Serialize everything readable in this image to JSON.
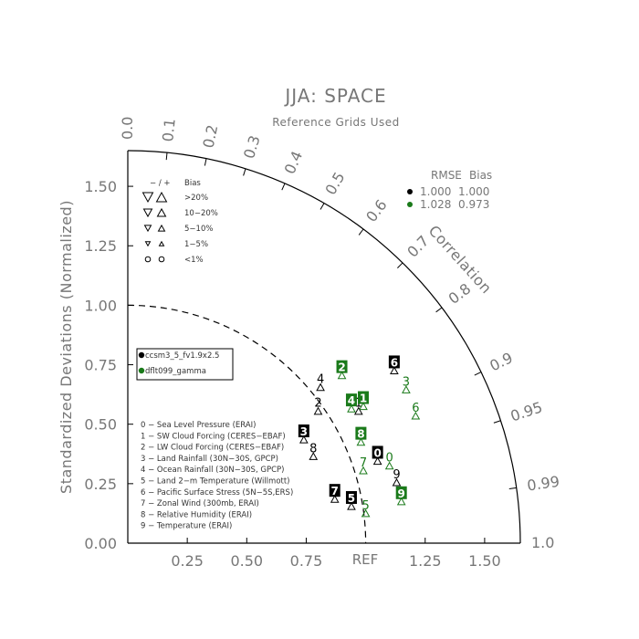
{
  "chart_data": {
    "type": "scatter",
    "subtype": "taylor-diagram",
    "title": "JJA: SPACE",
    "subtitle": "Reference Grids Used",
    "ylabel": "Standardized Deviations (Normalized)",
    "correlation_label": "Correlation",
    "ref_label": "REF",
    "std_range": [
      0,
      1.65
    ],
    "std_ticks_y": [
      "0.00",
      "0.25",
      "0.50",
      "0.75",
      "1.00",
      "1.25",
      "1.50"
    ],
    "std_ticks_x": [
      "0.25",
      "0.50",
      "0.75",
      "1.25",
      "1.50"
    ],
    "std_tick_values_x": [
      0.25,
      0.5,
      0.75,
      1.25,
      1.5
    ],
    "std_tick_values_y": [
      0,
      0.25,
      0.5,
      0.75,
      1.0,
      1.25,
      1.5
    ],
    "correlation_ticks": [
      "0.0",
      "0.1",
      "0.2",
      "0.3",
      "0.4",
      "0.5",
      "0.6",
      "0.7",
      "0.8",
      "0.9",
      "0.95",
      "0.99",
      "1.0"
    ],
    "correlation_tick_values": [
      0.0,
      0.1,
      0.2,
      0.3,
      0.4,
      0.5,
      0.6,
      0.7,
      0.8,
      0.9,
      0.95,
      0.99,
      1.0
    ],
    "reference_arc_radius": 1.0,
    "series": [
      {
        "name": "ccsm3_5_fv1.9x2.5",
        "color": "#000000",
        "points": [
          {
            "id": "0",
            "x": 1.05,
            "y": 0.38
          },
          {
            "id": "1",
            "x": 0.97,
            "y": 0.59
          },
          {
            "id": "2",
            "x": 0.8,
            "y": 0.59
          },
          {
            "id": "3",
            "x": 0.74,
            "y": 0.47
          },
          {
            "id": "4",
            "x": 0.81,
            "y": 0.69
          },
          {
            "id": "5",
            "x": 0.94,
            "y": 0.19
          },
          {
            "id": "6",
            "x": 1.12,
            "y": 0.76
          },
          {
            "id": "7",
            "x": 0.87,
            "y": 0.22
          },
          {
            "id": "8",
            "x": 0.78,
            "y": 0.4
          },
          {
            "id": "9",
            "x": 1.13,
            "y": 0.29
          }
        ]
      },
      {
        "name": "dflt099_gamma",
        "color": "#1a7a1a",
        "points": [
          {
            "id": "0",
            "x": 1.1,
            "y": 0.36
          },
          {
            "id": "1",
            "x": 0.99,
            "y": 0.61
          },
          {
            "id": "2",
            "x": 0.9,
            "y": 0.74
          },
          {
            "id": "3",
            "x": 1.17,
            "y": 0.68
          },
          {
            "id": "4",
            "x": 0.94,
            "y": 0.6
          },
          {
            "id": "5",
            "x": 1.0,
            "y": 0.16
          },
          {
            "id": "6",
            "x": 1.21,
            "y": 0.57
          },
          {
            "id": "7",
            "x": 0.99,
            "y": 0.34
          },
          {
            "id": "8",
            "x": 0.98,
            "y": 0.46
          },
          {
            "id": "9",
            "x": 1.15,
            "y": 0.21
          }
        ]
      }
    ],
    "highlighted_points": [
      {
        "series": 0,
        "id": "0"
      },
      {
        "series": 0,
        "id": "3"
      },
      {
        "series": 0,
        "id": "5"
      },
      {
        "series": 0,
        "id": "6"
      },
      {
        "series": 0,
        "id": "7"
      },
      {
        "series": 1,
        "id": "1"
      },
      {
        "series": 1,
        "id": "2"
      },
      {
        "series": 1,
        "id": "4"
      },
      {
        "series": 1,
        "id": "8"
      },
      {
        "series": 1,
        "id": "9"
      }
    ],
    "bias_legend": {
      "header_sign": "− / +",
      "header": "Bias",
      "rows": [
        ">20%",
        "10−20%",
        "5−10%",
        "1−5%",
        "<1%"
      ]
    },
    "rmse_bias_table": {
      "header_rmse": "RMSE",
      "header_bias": "Bias",
      "rows": [
        {
          "rmse": "1.000",
          "bias": "1.000",
          "color": "#000000"
        },
        {
          "rmse": "1.028",
          "bias": "0.973",
          "color": "#1a7a1a"
        }
      ]
    },
    "variables": [
      "0 − Sea Level Pressure (ERAI)",
      "1 − SW Cloud Forcing (CERES−EBAF)",
      "2 − LW Cloud Forcing (CERES−EBAF)",
      "3 − Land Rainfall (30N−30S, GPCP)",
      "4 − Ocean Rainfall (30N−30S, GPCP)",
      "5 − Land 2−m Temperature (Willmott)",
      "6 − Pacific Surface Stress (5N−5S,ERS)",
      "7 − Zonal Wind (300mb, ERAI)",
      "8 − Relative Humidity (ERAI)",
      "9 − Temperature (ERAI)"
    ]
  }
}
